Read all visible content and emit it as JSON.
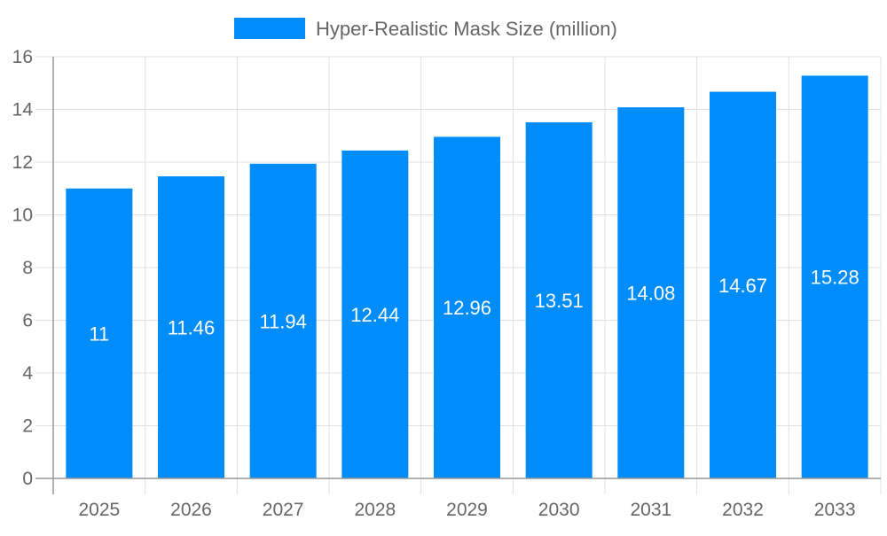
{
  "chart_data": {
    "type": "bar",
    "categories": [
      "2025",
      "2026",
      "2027",
      "2028",
      "2029",
      "2030",
      "2031",
      "2032",
      "2033"
    ],
    "series": [
      {
        "name": "Hyper-Realistic Mask Size (million)",
        "values": [
          11,
          11.46,
          11.94,
          12.44,
          12.96,
          13.51,
          14.08,
          14.67,
          15.28
        ]
      }
    ],
    "data_labels": [
      "11",
      "11.46",
      "11.94",
      "12.44",
      "12.96",
      "13.51",
      "14.08",
      "14.67",
      "15.28"
    ],
    "ylim": [
      0,
      16
    ],
    "yticks": [
      "0",
      "2",
      "4",
      "6",
      "8",
      "10",
      "12",
      "14",
      "16"
    ],
    "grid": true,
    "legend_position": "top",
    "colors": {
      "bar": "#008cf9",
      "grid": "#e0e0e0",
      "axis": "#999999",
      "text": "#666666",
      "label": "#ffffff"
    }
  }
}
